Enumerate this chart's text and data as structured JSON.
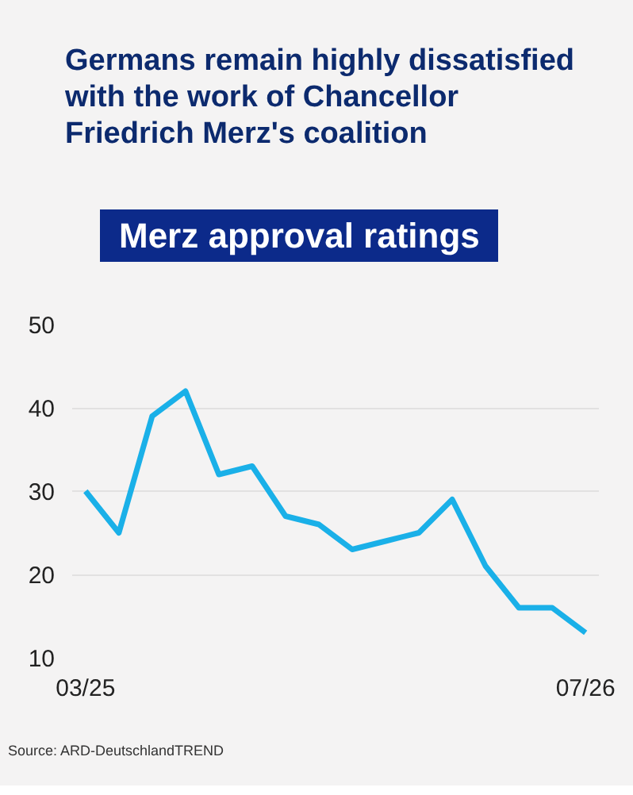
{
  "chart_data": {
    "type": "line",
    "title": "Germans remain highly dissatisfied with the work of Chancellor Friedrich Merz's coalition",
    "subtitle": "Merz approval ratings",
    "categories": [
      "03/25",
      null,
      null,
      null,
      null,
      null,
      null,
      null,
      null,
      null,
      null,
      null,
      null,
      null,
      null,
      "07/26"
    ],
    "series": [
      {
        "color": "#1ab0e8",
        "values": [
          30,
          25,
          39,
          42,
          32,
          33,
          27,
          26,
          23,
          24,
          25,
          29,
          21,
          16,
          16,
          13
        ]
      }
    ],
    "ylim": [
      10,
      50
    ],
    "yticks": [
      10,
      20,
      30,
      40,
      50
    ],
    "grid": "y",
    "marker": "none",
    "line_style": "solid",
    "annotations": [
      "Source: ARD-DeutschlandTREND"
    ]
  }
}
